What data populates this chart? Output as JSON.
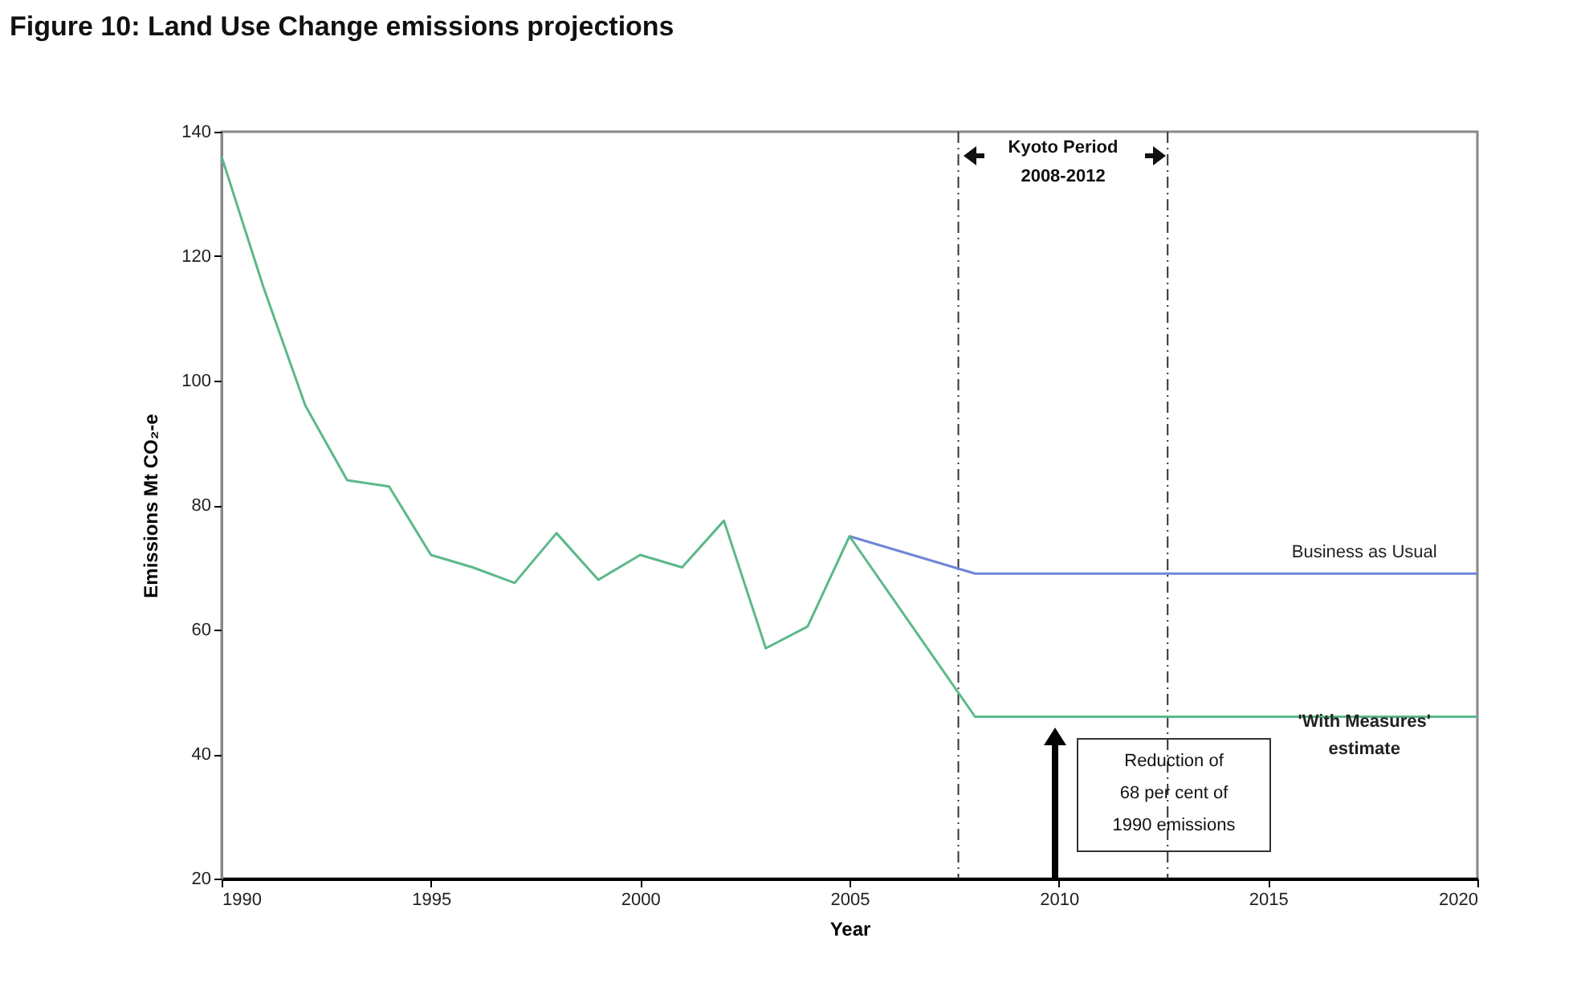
{
  "chart_data": {
    "type": "line",
    "title": "Figure 10:  Land Use Change emissions projections",
    "xlabel": "Year",
    "ylabel": "Emissions Mt CO₂-e",
    "series": [
      {
        "name": "Business as Usual",
        "color": "#6f86d6",
        "x": [
          2005,
          2008,
          2020
        ],
        "values": [
          75,
          69,
          69
        ]
      },
      {
        "name": "'With Measures' estimate",
        "color": "#5cb88a",
        "x": [
          1990,
          1991,
          1992,
          1993,
          1994,
          1995,
          1996,
          1997,
          1998,
          1999,
          2000,
          2001,
          2002,
          2003,
          2004,
          2005,
          2008,
          2020
        ],
        "values": [
          136,
          115,
          96,
          84,
          83,
          72,
          70,
          67.5,
          75.5,
          68,
          72,
          70,
          77.5,
          57,
          60.5,
          75,
          46,
          46
        ]
      }
    ],
    "xlim": [
      1990,
      2020
    ],
    "xticks": [
      1990,
      1995,
      2000,
      2005,
      2010,
      2015,
      2020
    ],
    "ylim": [
      20,
      140
    ],
    "yticks": [
      20,
      40,
      60,
      80,
      100,
      120,
      140
    ],
    "grid": false,
    "marker": "none",
    "line_style": "solid",
    "ref_lines": [
      {
        "axis": "x",
        "value": 2007.6,
        "color": "#333333",
        "line_style": "dashed"
      },
      {
        "axis": "x",
        "value": 2012.6,
        "color": "#333333",
        "line_style": "dashed"
      }
    ],
    "annotations": [
      "Kyoto Period 2008-2012",
      "Reduction of 68 per cent of 1990 emissions"
    ]
  }
}
